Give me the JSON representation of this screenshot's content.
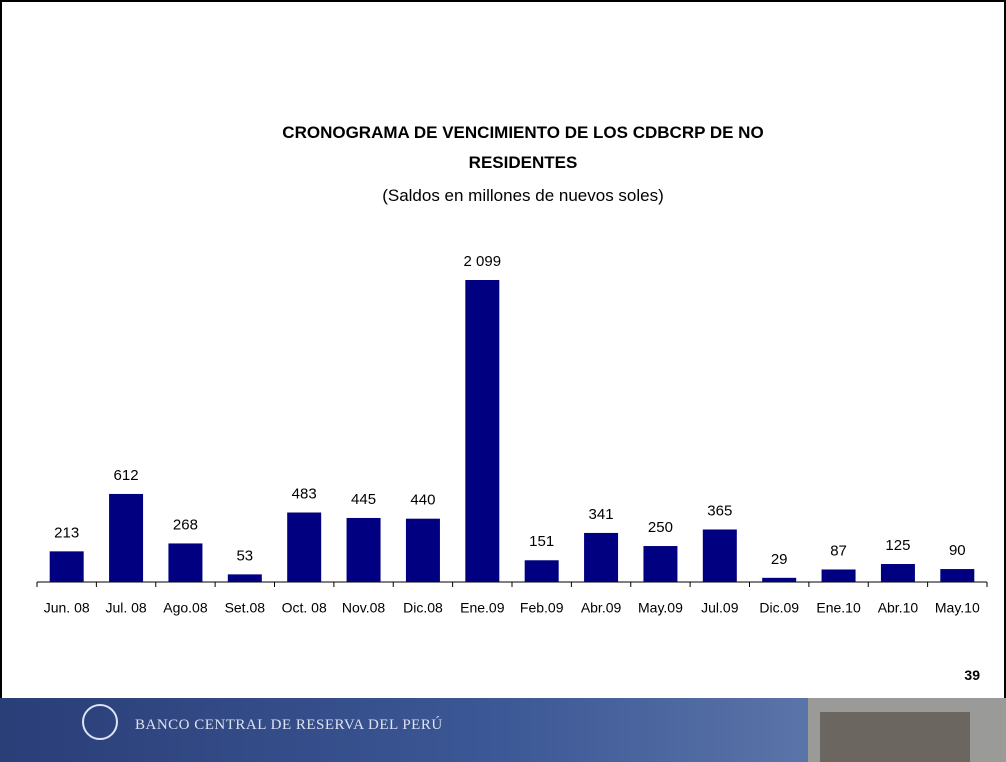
{
  "chart_data": {
    "type": "bar",
    "title": "CRONOGRAMA DE VENCIMIENTO DE LOS CDBCRP DE NO RESIDENTES",
    "subtitle": "(Saldos en millones de nuevos soles)",
    "categories": [
      "Jun. 08",
      "Jul. 08",
      "Ago.08",
      "Set.08",
      "Oct. 08",
      "Nov.08",
      "Dic.08",
      "Ene.09",
      "Feb.09",
      "Abr.09",
      "May.09",
      "Jul.09",
      "Dic.09",
      "Ene.10",
      "Abr.10",
      "May.10"
    ],
    "values": [
      213,
      612,
      268,
      53,
      483,
      445,
      440,
      2099,
      151,
      341,
      250,
      365,
      29,
      87,
      125,
      90
    ],
    "value_labels": [
      "213",
      "612",
      "268",
      "53",
      "483",
      "445",
      "440",
      "2 099",
      "151",
      "341",
      "250",
      "365",
      "29",
      "87",
      "125",
      "90"
    ],
    "color": "#000080"
  },
  "page_number": 39,
  "footer": {
    "bank_name": "BANCO CENTRAL DE RESERVA DEL PERÚ"
  }
}
